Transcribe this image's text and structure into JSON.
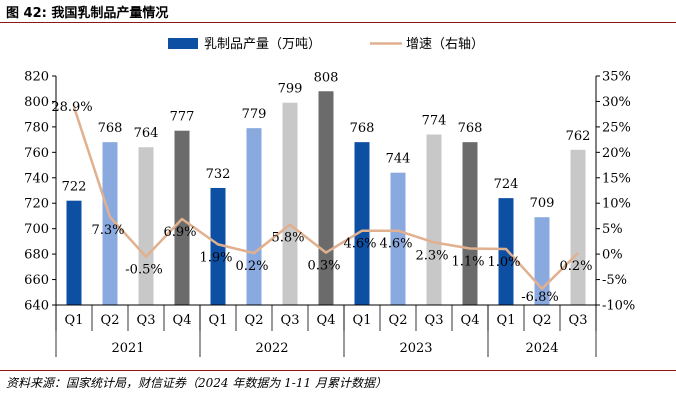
{
  "header": {
    "title": "图 42:  我国乳制品产量情况"
  },
  "footer": {
    "source": "资料来源：国家统计局，财信证券（2024 年数据为 1-11 月累计数据）"
  },
  "chart_data": {
    "type": "bar",
    "title": "",
    "years": [
      "2021",
      "2022",
      "2023",
      "2024"
    ],
    "quarters": [
      "Q1",
      "Q2",
      "Q3",
      "Q4",
      "Q1",
      "Q2",
      "Q3",
      "Q4",
      "Q1",
      "Q2",
      "Q3",
      "Q4",
      "Q1",
      "Q2",
      "Q3"
    ],
    "series": [
      {
        "name": "乳制品产量（万吨）",
        "axis": "left",
        "kind": "bar",
        "values": [
          722,
          768,
          764,
          777,
          732,
          779,
          799,
          808,
          768,
          744,
          774,
          768,
          724,
          709,
          762
        ]
      },
      {
        "name": "增速（右轴）",
        "axis": "right",
        "kind": "line",
        "values": [
          28.9,
          7.3,
          -0.5,
          6.9,
          1.9,
          0.2,
          5.8,
          0.3,
          4.6,
          4.6,
          2.3,
          1.1,
          1.0,
          -6.8,
          0.2
        ]
      }
    ],
    "bar_labels": [
      "722",
      "768",
      "764",
      "777",
      "732",
      "779",
      "799",
      "808",
      "768",
      "744",
      "774",
      "768",
      "724",
      "709",
      "762"
    ],
    "line_labels": [
      "28.9%",
      "7.3%",
      "-0.5%",
      "6.9%",
      "1.9%",
      "0.2%",
      "5.8%",
      "0.3%",
      "4.6%",
      "4.6%",
      "2.3%",
      "1.1%",
      "1.0%",
      "-6.8%",
      "0.2%"
    ],
    "left_axis": {
      "min": 640,
      "max": 820,
      "step": 20,
      "ticks": [
        "640",
        "660",
        "680",
        "700",
        "720",
        "740",
        "760",
        "780",
        "800",
        "820"
      ]
    },
    "right_axis": {
      "min": -10,
      "max": 35,
      "step": 5,
      "ticks": [
        "-10%",
        "-5%",
        "0%",
        "5%",
        "10%",
        "15%",
        "20%",
        "25%",
        "30%",
        "35%"
      ]
    },
    "bar_colors": [
      "#0d4fa3",
      "#8aa9de",
      "#c8c8c8",
      "#6b6b6b"
    ],
    "line_color": "#e0b08f",
    "grid": false,
    "legend_position": "top-center"
  }
}
